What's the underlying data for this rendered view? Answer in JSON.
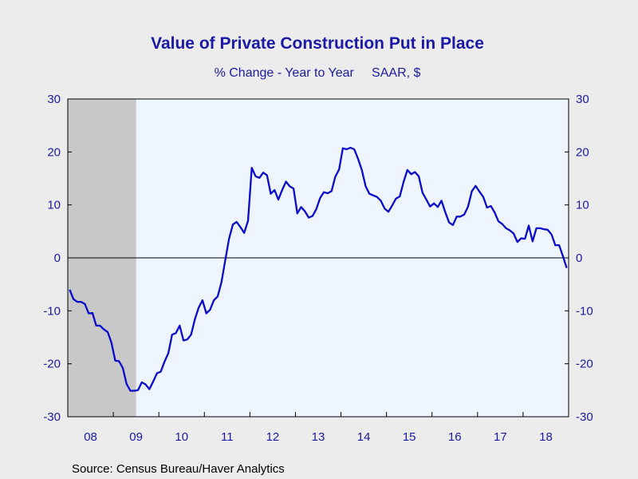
{
  "chart_data": {
    "type": "line",
    "title": "Value of Private Construction Put in Place",
    "subtitle": "% Change - Year to Year     SAAR, $",
    "source": "Source:  Census Bureau/Haver Analytics",
    "ylim": [
      -30,
      30
    ],
    "yticks": [
      30,
      20,
      10,
      0,
      -10,
      -20,
      -30
    ],
    "x_start": "2008-01",
    "x_end": "2018-12",
    "xtick_labels": [
      "08",
      "09",
      "10",
      "11",
      "12",
      "13",
      "14",
      "15",
      "16",
      "17",
      "18"
    ],
    "recession_shading": {
      "start": "2008-01",
      "end": "2009-06"
    },
    "zero_line": true,
    "colors": {
      "line": "#0a0acc",
      "plot_bg": "#eef5ff",
      "recession": "#c8c8c8",
      "text": "#1a1aa6"
    },
    "series": [
      {
        "x": [
          "2008-01",
          "2008-02",
          "2008-03",
          "2008-04",
          "2008-05",
          "2008-06",
          "2008-07",
          "2008-08",
          "2008-09",
          "2008-10",
          "2008-11",
          "2008-12",
          "2009-01",
          "2009-02",
          "2009-03",
          "2009-04",
          "2009-05",
          "2009-06",
          "2009-07",
          "2009-08",
          "2009-09",
          "2009-10",
          "2009-11",
          "2009-12",
          "2010-01",
          "2010-02",
          "2010-03",
          "2010-04",
          "2010-05",
          "2010-06",
          "2010-07",
          "2010-08",
          "2010-09",
          "2010-10",
          "2010-11",
          "2010-12",
          "2011-01",
          "2011-02",
          "2011-03",
          "2011-04",
          "2011-05",
          "2011-06",
          "2011-07",
          "2011-08",
          "2011-09",
          "2011-10",
          "2011-11",
          "2011-12",
          "2012-01",
          "2012-02",
          "2012-03",
          "2012-04",
          "2012-05",
          "2012-06",
          "2012-07",
          "2012-08",
          "2012-09",
          "2012-10",
          "2012-11",
          "2012-12",
          "2013-01",
          "2013-02",
          "2013-03",
          "2013-04",
          "2013-05",
          "2013-06",
          "2013-07",
          "2013-08",
          "2013-09",
          "2013-10",
          "2013-11",
          "2013-12",
          "2014-01",
          "2014-02",
          "2014-03",
          "2014-04",
          "2014-05",
          "2014-06",
          "2014-07",
          "2014-08",
          "2014-09",
          "2014-10",
          "2014-11",
          "2014-12",
          "2015-01",
          "2015-02",
          "2015-03",
          "2015-04",
          "2015-05",
          "2015-06",
          "2015-07",
          "2015-08",
          "2015-09",
          "2015-10",
          "2015-11",
          "2015-12",
          "2016-01",
          "2016-02",
          "2016-03",
          "2016-04",
          "2016-05",
          "2016-06",
          "2016-07",
          "2016-08",
          "2016-09",
          "2016-10",
          "2016-11",
          "2016-12",
          "2017-01",
          "2017-02",
          "2017-03",
          "2017-04",
          "2017-05",
          "2017-06",
          "2017-07",
          "2017-08",
          "2017-09",
          "2017-10",
          "2017-11",
          "2017-12",
          "2018-01",
          "2018-02",
          "2018-03",
          "2018-04",
          "2018-05",
          "2018-06",
          "2018-07",
          "2018-08",
          "2018-09",
          "2018-10",
          "2018-11",
          "2018-12"
        ],
        "values": [
          -6.0,
          -7.8,
          -8.3,
          -8.3,
          -8.7,
          -10.5,
          -10.4,
          -12.8,
          -12.8,
          -13.5,
          -14.0,
          -16.0,
          -19.4,
          -19.5,
          -20.8,
          -23.8,
          -25.1,
          -25.1,
          -25.0,
          -23.5,
          -23.9,
          -24.8,
          -23.4,
          -21.8,
          -21.5,
          -19.6,
          -18.0,
          -14.5,
          -14.2,
          -12.8,
          -15.6,
          -15.4,
          -14.5,
          -11.6,
          -9.4,
          -8.0,
          -10.5,
          -9.8,
          -8.0,
          -7.3,
          -4.6,
          -0.5,
          3.6,
          6.3,
          6.8,
          5.8,
          4.7,
          7.0,
          17.0,
          15.4,
          15.1,
          16.1,
          15.6,
          12.1,
          12.8,
          11.0,
          12.8,
          14.4,
          13.5,
          13.1,
          8.4,
          9.6,
          8.8,
          7.6,
          7.9,
          9.2,
          11.3,
          12.4,
          12.2,
          12.6,
          15.3,
          16.7,
          20.7,
          20.5,
          20.8,
          20.5,
          18.7,
          16.6,
          13.5,
          12.1,
          11.8,
          11.5,
          10.8,
          9.3,
          8.7,
          9.9,
          11.2,
          11.6,
          14.3,
          16.6,
          15.8,
          16.2,
          15.4,
          12.3,
          11.0,
          9.7,
          10.3,
          9.6,
          10.8,
          8.6,
          6.7,
          6.2,
          7.8,
          7.8,
          8.2,
          9.7,
          12.6,
          13.6,
          12.5,
          11.5,
          9.5,
          9.8,
          8.6,
          6.9,
          6.4,
          5.6,
          5.2,
          4.6,
          3.0,
          3.7,
          3.6,
          6.1,
          3.1,
          5.6,
          5.6,
          5.4,
          5.3,
          4.4,
          2.4,
          2.4,
          0.3,
          -1.9
        ]
      }
    ]
  }
}
